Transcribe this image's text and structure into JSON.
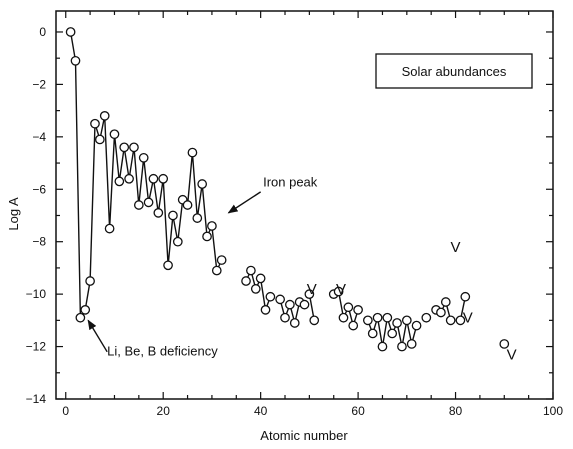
{
  "chart_data": {
    "type": "line",
    "title": "",
    "xlabel": "Atomic number",
    "ylabel": "Log A",
    "xlim": [
      -2,
      100
    ],
    "ylim": [
      -14,
      0.8
    ],
    "x_ticks": [
      0,
      20,
      40,
      60,
      80,
      100
    ],
    "y_ticks": [
      0,
      -2,
      -4,
      -6,
      -8,
      -10,
      -12,
      -14
    ],
    "grid": false,
    "legend_box": "Solar abundances",
    "segments": [
      {
        "points": [
          [
            1,
            0
          ],
          [
            2,
            -1.1
          ],
          [
            3,
            -10.9
          ],
          [
            4,
            -10.6
          ],
          [
            5,
            -9.5
          ],
          [
            6,
            -3.5
          ],
          [
            7,
            -4.1
          ],
          [
            8,
            -3.2
          ],
          [
            9,
            -7.5
          ],
          [
            10,
            -3.9
          ],
          [
            11,
            -5.7
          ],
          [
            12,
            -4.4
          ],
          [
            13,
            -5.6
          ],
          [
            14,
            -4.4
          ],
          [
            15,
            -6.6
          ],
          [
            16,
            -4.8
          ],
          [
            17,
            -6.5
          ],
          [
            18,
            -5.6
          ],
          [
            19,
            -6.9
          ],
          [
            20,
            -5.6
          ],
          [
            21,
            -8.9
          ],
          [
            22,
            -7.0
          ],
          [
            23,
            -8.0
          ],
          [
            24,
            -6.4
          ],
          [
            25,
            -6.6
          ],
          [
            26,
            -4.6
          ],
          [
            27,
            -7.1
          ],
          [
            28,
            -5.8
          ],
          [
            29,
            -7.8
          ],
          [
            30,
            -7.4
          ],
          [
            31,
            -9.1
          ],
          [
            32,
            -8.7
          ]
        ]
      },
      {
        "points": [
          [
            37,
            -9.5
          ],
          [
            38,
            -9.1
          ],
          [
            39,
            -9.8
          ],
          [
            40,
            -9.4
          ],
          [
            41,
            -10.6
          ],
          [
            42,
            -10.1
          ]
        ]
      },
      {
        "points": [
          [
            44,
            -10.2
          ],
          [
            45,
            -10.9
          ],
          [
            46,
            -10.4
          ],
          [
            47,
            -11.1
          ],
          [
            48,
            -10.3
          ],
          [
            49,
            -10.4
          ]
        ]
      },
      {
        "points": [
          [
            50,
            -10.0
          ],
          [
            51,
            -11.0
          ]
        ]
      },
      {
        "points": [
          [
            55,
            -10.0
          ],
          [
            56,
            -9.9
          ],
          [
            57,
            -10.9
          ],
          [
            58,
            -10.5
          ],
          [
            59,
            -11.2
          ],
          [
            60,
            -10.6
          ]
        ]
      },
      {
        "points": [
          [
            62,
            -11.0
          ],
          [
            63,
            -11.5
          ],
          [
            64,
            -10.9
          ],
          [
            65,
            -12.0
          ],
          [
            66,
            -10.9
          ],
          [
            67,
            -11.5
          ],
          [
            68,
            -11.1
          ],
          [
            69,
            -12.0
          ],
          [
            70,
            -11.0
          ],
          [
            71,
            -11.9
          ],
          [
            72,
            -11.2
          ]
        ]
      },
      {
        "points": [
          [
            74,
            -10.9
          ]
        ]
      },
      {
        "points": [
          [
            76,
            -10.6
          ],
          [
            77,
            -10.7
          ],
          [
            78,
            -10.3
          ],
          [
            79,
            -11.0
          ]
        ]
      },
      {
        "points": [
          [
            81,
            -11.0
          ],
          [
            82,
            -10.1
          ]
        ]
      },
      {
        "points": [
          [
            90,
            -11.9
          ]
        ]
      }
    ],
    "v_marks": [
      [
        50.5,
        -9.8
      ],
      [
        56.5,
        -9.8
      ],
      [
        80,
        -8.2
      ],
      [
        82.5,
        -10.9
      ],
      [
        91.5,
        -12.3
      ]
    ],
    "annotations": [
      {
        "text": "Iron peak",
        "text_pos": [
          40.5,
          -5.9
        ],
        "arrow_from": [
          40.0,
          -6.1
        ],
        "arrow_to": [
          33.4,
          -6.9
        ]
      },
      {
        "text": "Li, Be, B deficiency",
        "text_pos": [
          8.5,
          -12.35
        ],
        "arrow_from": [
          8.5,
          -12.2
        ],
        "arrow_to": [
          4.6,
          -11.0
        ]
      }
    ]
  }
}
